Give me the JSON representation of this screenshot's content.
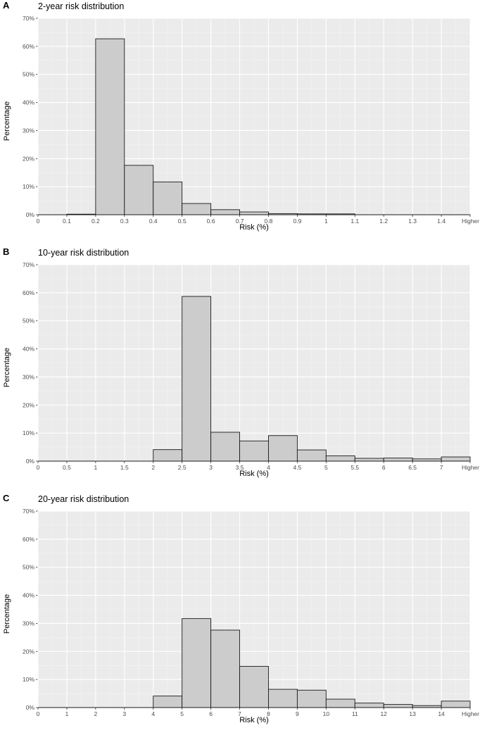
{
  "panels": [
    {
      "letter": "A",
      "title": "2-year risk distribution",
      "ylabel": "Percentage",
      "xlabel": "Risk (%)"
    },
    {
      "letter": "B",
      "title": "10-year risk distribution",
      "ylabel": "Percentage",
      "xlabel": "Risk (%)"
    },
    {
      "letter": "C",
      "title": "20-year risk distribution",
      "ylabel": "Percentage",
      "xlabel": "Risk (%)"
    }
  ],
  "chart_data": [
    {
      "type": "bar",
      "title": "2-year risk distribution",
      "xlabel": "Risk (%)",
      "ylabel": "Percentage",
      "ylim": [
        0,
        70
      ],
      "yticks": [
        "0%",
        "10%",
        "20%",
        "30%",
        "40%",
        "50%",
        "60%",
        "70%"
      ],
      "xticks": [
        "0",
        "0.1",
        "0.2",
        "0.3",
        "0.4",
        "0.5",
        "0.6",
        "0.7",
        "0.8",
        "0.9",
        "1",
        "1.1",
        "1.2",
        "1.3",
        "1.4",
        "Higher"
      ],
      "values": [
        0,
        0.2,
        62.7,
        17.6,
        11.7,
        4.0,
        1.8,
        1.0,
        0.4,
        0.3,
        0.3,
        0,
        0,
        0,
        0
      ],
      "grid": true,
      "bar_color": "#cccccc",
      "panel_color": "#ebebeb"
    },
    {
      "type": "bar",
      "title": "10-year risk distribution",
      "xlabel": "Risk (%)",
      "ylabel": "Percentage",
      "ylim": [
        0,
        70
      ],
      "yticks": [
        "0%",
        "10%",
        "20%",
        "30%",
        "40%",
        "50%",
        "60%",
        "70%"
      ],
      "xticks": [
        "0",
        "0.5",
        "1",
        "1.5",
        "2",
        "2.5",
        "3",
        "3.5",
        "4",
        "4.5",
        "5",
        "5.5",
        "6",
        "6.5",
        "7",
        "Higher"
      ],
      "values": [
        0,
        0,
        0,
        0,
        4.1,
        58.7,
        10.3,
        7.2,
        9.1,
        4.0,
        1.9,
        1.0,
        1.1,
        0.8,
        1.5
      ],
      "grid": true,
      "bar_color": "#cccccc",
      "panel_color": "#ebebeb"
    },
    {
      "type": "bar",
      "title": "20-year risk distribution",
      "xlabel": "Risk (%)",
      "ylabel": "Percentage",
      "ylim": [
        0,
        70
      ],
      "yticks": [
        "0%",
        "10%",
        "20%",
        "30%",
        "40%",
        "50%",
        "60%",
        "70%"
      ],
      "xticks": [
        "0",
        "1",
        "2",
        "3",
        "4",
        "5",
        "6",
        "7",
        "8",
        "9",
        "10",
        "11",
        "12",
        "13",
        "14",
        "Higher"
      ],
      "values": [
        0,
        0,
        0,
        0,
        4.1,
        31.7,
        27.6,
        14.7,
        6.5,
        6.2,
        3.0,
        1.6,
        1.1,
        0.7,
        2.3
      ],
      "grid": true,
      "bar_color": "#cccccc",
      "panel_color": "#ebebeb"
    }
  ]
}
